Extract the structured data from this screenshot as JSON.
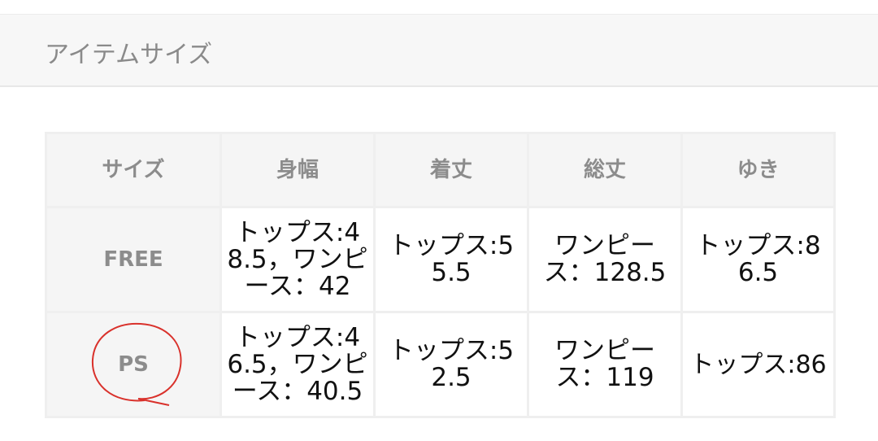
{
  "section_title": "アイテムサイズ",
  "table": {
    "headers": [
      "サイズ",
      "身幅",
      "着丈",
      "総丈",
      "ゆき"
    ],
    "rows": [
      [
        "FREE",
        "トップス:48.5，ワンピース：42",
        "トップス:55.5",
        "ワンピース：128.5",
        "トップス:86.5"
      ],
      [
        "PS",
        "トップス:46.5，ワンピース：40.5",
        "トップス:52.5",
        "ワンピース：119",
        "トップス:86"
      ]
    ]
  },
  "annotation": {
    "shape": "hand-drawn circle around PS",
    "color": "#d9312b"
  }
}
